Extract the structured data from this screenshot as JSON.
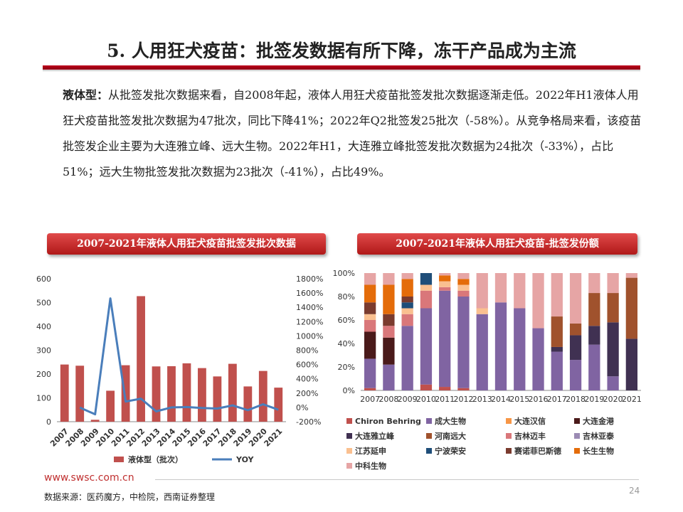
{
  "title": "5. 人用狂犬疫苗：批签发数据有所下降，冻干产品成为主流",
  "bullet_symbol": "➢",
  "paragraph": {
    "label": "液体型：",
    "text": "从批签发批次数据来看，自2008年起，液体人用狂犬疫苗批签发批次数据逐渐走低。2022年H1液体人用狂犬疫苗批签发批次数据为47批次，同比下降41%；2022年Q2批签发25批次（-58%）。从竞争格局来看，该疫苗批签发企业主要为大连雅立峰、远大生物。2022年H1，大连雅立峰批签发批次数据为24批次（-33%），占比51%；远大生物批签发批次数据为23批次（-41%），占比49%。"
  },
  "chart_titles": {
    "left": "2007-2021年液体人用狂犬疫苗批签发批次数据",
    "right": "2007-2021年液体人用狂犬疫苗-批签发份额"
  },
  "chart_data": [
    {
      "type": "bar",
      "categories": [
        "2007",
        "2008",
        "2009",
        "2010",
        "2011",
        "2012",
        "2013",
        "2014",
        "2015",
        "2016",
        "2017",
        "2018",
        "2019",
        "2020",
        "2021"
      ],
      "series": [
        {
          "name": "液体型（批次）",
          "type": "bar",
          "axis": "left",
          "color": "#c0504d",
          "values": [
            240,
            235,
            8,
            130,
            237,
            527,
            232,
            233,
            245,
            225,
            190,
            243,
            148,
            213,
            143
          ]
        },
        {
          "name": "YOY",
          "type": "line",
          "axis": "right",
          "color": "#4a7ebb",
          "values": [
            null,
            -2,
            -97,
            1525,
            82,
            122,
            -56,
            0,
            5,
            -8,
            -16,
            28,
            -39,
            44,
            -33
          ]
        }
      ],
      "ylim_left": [
        0,
        600
      ],
      "yticks_left": [
        "0",
        "100",
        "200",
        "300",
        "400",
        "500",
        "600"
      ],
      "ylim_right": [
        -200,
        1800
      ],
      "yticks_right": [
        "-200%",
        "0%",
        "200%",
        "400%",
        "600%",
        "800%",
        "1000%",
        "1200%",
        "1400%",
        "1600%",
        "1800%"
      ],
      "legend_position": "bottom"
    },
    {
      "type": "bar",
      "stacked": true,
      "categories": [
        "2007",
        "2008",
        "2009",
        "2010",
        "2011",
        "2012",
        "2013",
        "2014",
        "2015",
        "2016",
        "2017",
        "2018",
        "2019",
        "2020",
        "2021"
      ],
      "yticks": [
        "0%",
        "20%",
        "40%",
        "60%",
        "80%",
        "100%"
      ],
      "ylim": [
        0,
        100
      ],
      "legend_position": "bottom",
      "series": [
        {
          "name": "Chiron Behring",
          "color": "#c0504d",
          "values": [
            2,
            0,
            0,
            5,
            3,
            2,
            0,
            0,
            0,
            0,
            0,
            0,
            0,
            0,
            0
          ]
        },
        {
          "name": "成大生物",
          "color": "#8064a2",
          "values": [
            25,
            22,
            55,
            65,
            82,
            78,
            65,
            75,
            70,
            53,
            33,
            26,
            39,
            12,
            0
          ]
        },
        {
          "name": "大连汉信",
          "color": "#f79646",
          "values": [
            0,
            0,
            0,
            0,
            0,
            0,
            0,
            0,
            0,
            0,
            0,
            0,
            0,
            0,
            0
          ]
        },
        {
          "name": "大连金港",
          "color": "#4a1a1a",
          "values": [
            23,
            23,
            0,
            0,
            0,
            0,
            0,
            0,
            0,
            0,
            0,
            0,
            0,
            0,
            0
          ]
        },
        {
          "name": "大连雅立峰",
          "color": "#403152",
          "values": [
            0,
            0,
            0,
            0,
            0,
            0,
            0,
            0,
            0,
            0,
            4,
            21,
            16,
            46,
            44
          ]
        },
        {
          "name": "河南远大",
          "color": "#a0522d",
          "values": [
            0,
            0,
            0,
            0,
            0,
            0,
            0,
            0,
            0,
            0,
            26,
            10,
            28,
            25,
            52
          ]
        },
        {
          "name": "吉林迈丰",
          "color": "#d9777a",
          "values": [
            10,
            10,
            10,
            15,
            3,
            5,
            0,
            0,
            0,
            0,
            0,
            0,
            0,
            0,
            0
          ]
        },
        {
          "name": "吉林亚泰",
          "color": "#9b8bb4",
          "values": [
            0,
            0,
            0,
            0,
            0,
            0,
            0,
            0,
            0,
            0,
            0,
            0,
            0,
            0,
            0
          ]
        },
        {
          "name": "江苏延申",
          "color": "#fac090",
          "values": [
            5,
            0,
            5,
            5,
            5,
            5,
            5,
            0,
            0,
            0,
            0,
            0,
            0,
            0,
            0
          ]
        },
        {
          "name": "宁波荣安",
          "color": "#1f4e79",
          "values": [
            0,
            0,
            5,
            10,
            0,
            0,
            0,
            0,
            0,
            0,
            0,
            0,
            0,
            0,
            0
          ]
        },
        {
          "name": "赛诺菲巴斯德",
          "color": "#7a3b2e",
          "values": [
            10,
            10,
            5,
            0,
            0,
            0,
            0,
            0,
            0,
            0,
            0,
            0,
            0,
            0,
            0
          ]
        },
        {
          "name": "长生生物",
          "color": "#e46c0a",
          "values": [
            15,
            25,
            15,
            0,
            5,
            5,
            0,
            0,
            0,
            0,
            0,
            0,
            0,
            0,
            0
          ]
        },
        {
          "name": "中科生物",
          "color": "#e6a5a5",
          "values": [
            10,
            10,
            5,
            0,
            2,
            5,
            30,
            25,
            30,
            47,
            37,
            43,
            17,
            17,
            4
          ]
        }
      ]
    }
  ],
  "footer": {
    "url": "www.swsc.com.cn",
    "source": "数据来源：医药魔方，中检院，西南证券整理",
    "page_number": "24"
  }
}
